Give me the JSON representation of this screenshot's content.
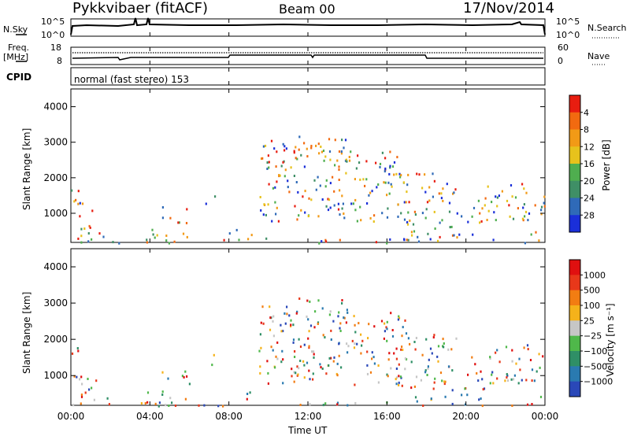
{
  "header": {
    "station": "Pykkvibaer (fitACF)",
    "beam": "Beam 00",
    "date": "17/Nov/2014"
  },
  "top_panels": {
    "nsky_label": "N.Sky",
    "nsky_top": "10^5",
    "nsky_bottom": "10^0",
    "nsearch_label": "N.Search",
    "freq_label": "Freq.",
    "freq_unit": "[MHz]",
    "freq_top": "18",
    "freq_bottom": "8",
    "nave_top": "60",
    "nave_bottom": "0",
    "nave_label": "Nave",
    "cpid_label": "CPID",
    "cpid_value": "normal (fast stereo) 153"
  },
  "chart_data": [
    {
      "type": "heatmap",
      "name": "power",
      "ylabel": "Slant Range [km]",
      "ylim": [
        180,
        4500
      ],
      "yticks": [
        "1000",
        "2000",
        "3000",
        "4000"
      ],
      "colorbar_label": "Power [dB]",
      "colorbar_ticks": [
        "4",
        "8",
        "12",
        "16",
        "20",
        "24",
        "28"
      ],
      "colorbar_colors": [
        "#1a2fd9",
        "#2f6ab8",
        "#3f8f66",
        "#4fae4f",
        "#e7c21c",
        "#f29a16",
        "#f26a10",
        "#e81d10"
      ]
    },
    {
      "type": "heatmap",
      "name": "velocity",
      "ylabel": "Slant Range [km]",
      "ylim": [
        180,
        4500
      ],
      "yticks": [
        "1000",
        "2000",
        "3000",
        "4000"
      ],
      "colorbar_label": "Velocity [m s⁻¹]",
      "colorbar_ticks": [
        "1000",
        "500",
        "100",
        "25",
        "−25",
        "−100",
        "−500",
        "−1000"
      ],
      "colorbar_colors": [
        "#2a48b8",
        "#2a7ab0",
        "#2f8f66",
        "#4fb84a",
        "#c6c6c6",
        "#f5b21a",
        "#f27d12",
        "#e8381a",
        "#e01010"
      ]
    }
  ],
  "x_axis": {
    "ticks": [
      "00:00",
      "04:00",
      "08:00",
      "12:00",
      "16:00",
      "20:00",
      "00:00"
    ],
    "label": "Time UT"
  }
}
